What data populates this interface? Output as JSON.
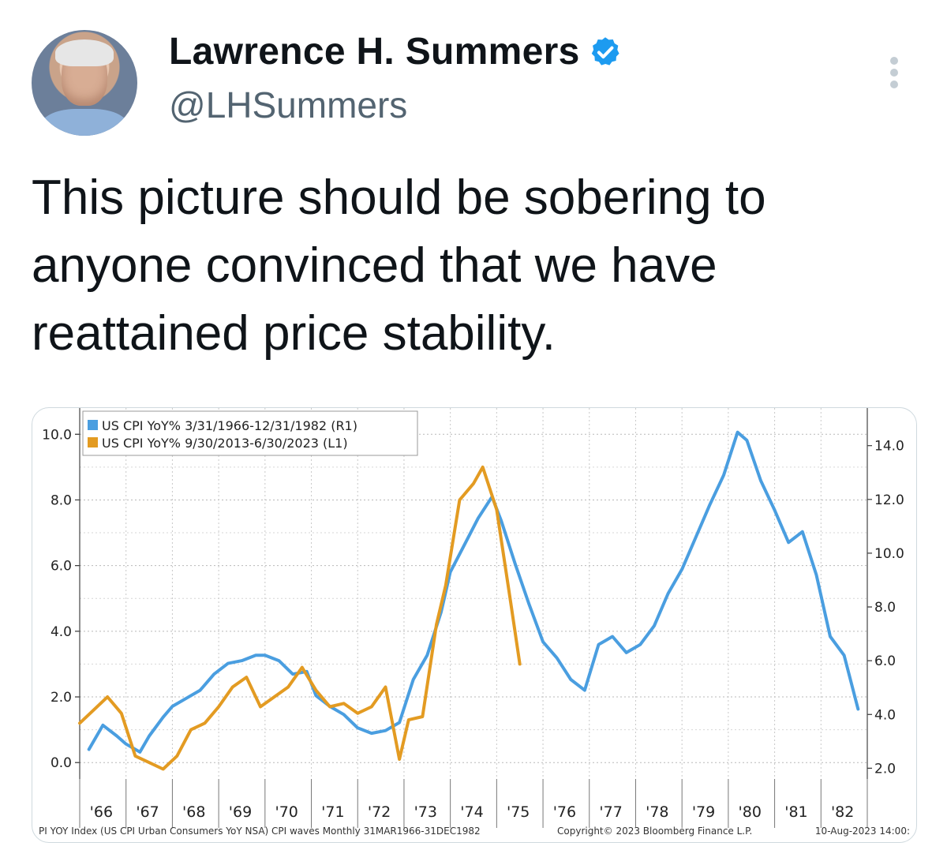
{
  "author": {
    "name": "Lawrence H. Summers",
    "handle": "@LHSummers"
  },
  "icons": {
    "verified": "verified-badge-icon",
    "more": "more-options-icon"
  },
  "tweet": {
    "lines": [
      "This picture should be sobering to",
      "anyone convinced that we have",
      "reattained price stability."
    ]
  },
  "chart_data": {
    "type": "line",
    "legend": {
      "placement": "top-left",
      "entries": [
        "US CPI YoY% 3/31/1966-12/31/1982 (R1)",
        "US CPI YoY% 9/30/2013-6/30/2023 (L1)"
      ]
    },
    "left_axis": {
      "ticks": [
        "10.0",
        "8.0",
        "6.0",
        "4.0",
        "2.0",
        "0.0"
      ],
      "range": [
        -0.5,
        10.8
      ]
    },
    "right_axis": {
      "ticks": [
        "14.0",
        "12.0",
        "10.0",
        "8.0",
        "6.0",
        "4.0",
        "2.0"
      ],
      "range": [
        1.6,
        15.4
      ]
    },
    "x_ticks": [
      "'66",
      "'67",
      "'68",
      "'69",
      "'70",
      "'71",
      "'72",
      "'73",
      "'74",
      "'75",
      "'76",
      "'77",
      "'78",
      "'79",
      "'80",
      "'81",
      "'82"
    ],
    "x_range": [
      1966.0,
      1983.0
    ],
    "grid": true,
    "colors": {
      "series_1966_1982": "#4a9ee0",
      "series_2013_2023": "#e39b22"
    },
    "series": [
      {
        "name": "US CPI YoY% 3/31/1966-12/31/1982 (R1)",
        "axis": "right",
        "x": [
          1966.2,
          1966.5,
          1966.8,
          1967.0,
          1967.3,
          1967.5,
          1967.8,
          1968.0,
          1968.3,
          1968.6,
          1968.9,
          1969.2,
          1969.5,
          1969.8,
          1970.0,
          1970.3,
          1970.6,
          1970.9,
          1971.1,
          1971.4,
          1971.7,
          1972.0,
          1972.3,
          1972.6,
          1972.9,
          1973.2,
          1973.5,
          1973.8,
          1974.0,
          1974.3,
          1974.6,
          1974.9,
          1975.1,
          1975.4,
          1975.7,
          1976.0,
          1976.3,
          1976.6,
          1976.9,
          1977.2,
          1977.5,
          1977.8,
          1978.1,
          1978.4,
          1978.7,
          1979.0,
          1979.3,
          1979.6,
          1979.9,
          1980.2,
          1980.4,
          1980.7,
          1981.0,
          1981.3,
          1981.6,
          1981.9,
          1982.2,
          1982.5,
          1982.8
        ],
        "y": [
          2.7,
          3.6,
          3.2,
          2.9,
          2.6,
          3.2,
          3.9,
          4.3,
          4.6,
          4.9,
          5.5,
          5.9,
          6.0,
          6.2,
          6.2,
          6.0,
          5.5,
          5.6,
          4.7,
          4.3,
          4.0,
          3.5,
          3.3,
          3.4,
          3.7,
          5.3,
          6.2,
          7.8,
          9.3,
          10.3,
          11.3,
          12.1,
          11.2,
          9.6,
          8.1,
          6.7,
          6.1,
          5.3,
          4.9,
          6.6,
          6.9,
          6.3,
          6.6,
          7.3,
          8.5,
          9.4,
          10.6,
          11.8,
          12.9,
          14.5,
          14.2,
          12.7,
          11.6,
          10.4,
          10.8,
          9.2,
          6.9,
          6.2,
          4.2
        ]
      },
      {
        "name": "US CPI YoY% 9/30/2013-6/30/2023 (L1)",
        "axis": "left",
        "x": [
          1966.0,
          1966.3,
          1966.6,
          1966.9,
          1967.2,
          1967.5,
          1967.8,
          1968.1,
          1968.4,
          1968.7,
          1969.0,
          1969.3,
          1969.6,
          1969.9,
          1970.2,
          1970.5,
          1970.8,
          1971.1,
          1971.4,
          1971.7,
          1972.0,
          1972.3,
          1972.6,
          1972.9,
          1973.1,
          1973.4,
          1973.7,
          1973.9,
          1974.2,
          1974.5,
          1974.7,
          1975.0,
          1975.3,
          1975.5
        ],
        "y": [
          1.2,
          1.6,
          2.0,
          1.5,
          0.2,
          0.0,
          -0.2,
          0.2,
          1.0,
          1.2,
          1.7,
          2.3,
          2.6,
          1.7,
          2.0,
          2.3,
          2.9,
          2.2,
          1.7,
          1.8,
          1.5,
          1.7,
          2.3,
          0.1,
          1.3,
          1.4,
          4.2,
          5.4,
          8.0,
          8.5,
          9.0,
          7.7,
          4.9,
          3.0
        ]
      }
    ],
    "footer": {
      "source": "PI YOY Index (US CPI Urban Consumers YoY NSA) CPI waves  Monthly 31MAR1966-31DEC1982",
      "copyright": "Copyright© 2023 Bloomberg Finance L.P.",
      "timestamp": "10-Aug-2023 14:00:"
    }
  }
}
